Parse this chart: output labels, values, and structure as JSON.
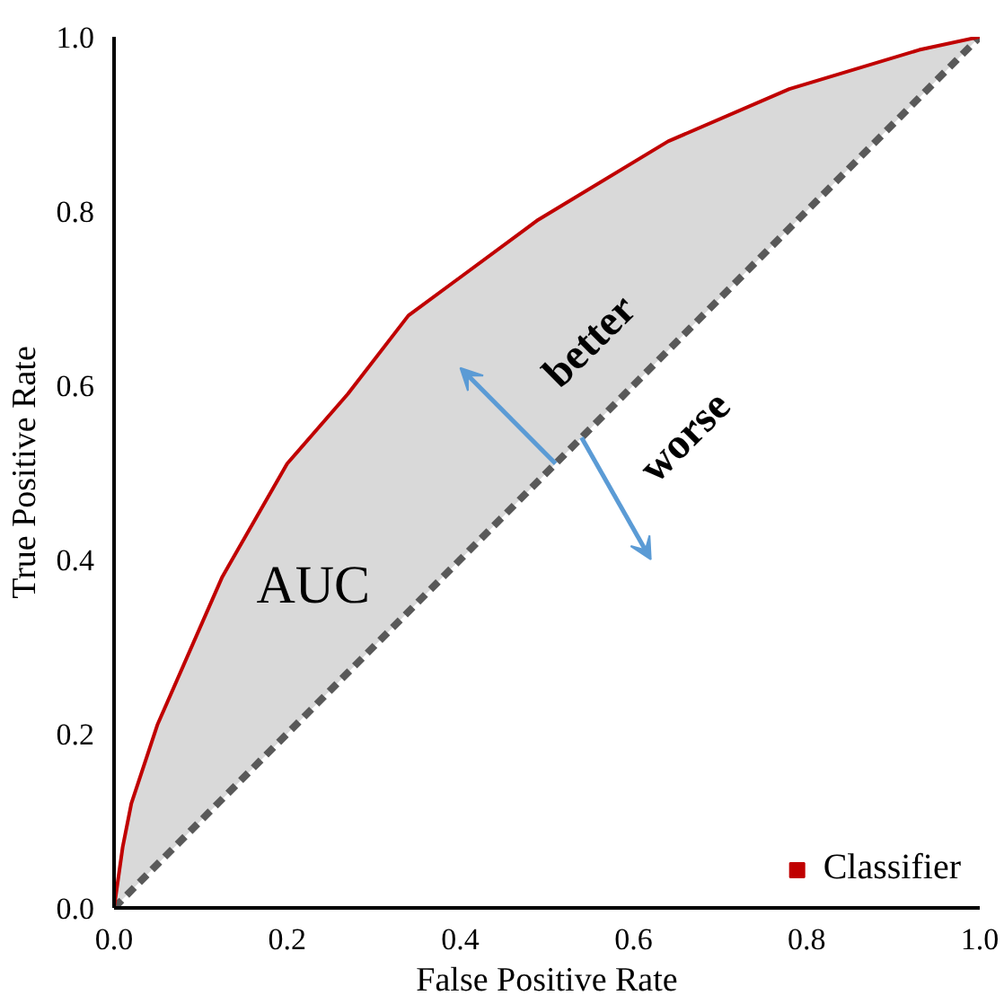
{
  "chart_data": {
    "type": "line",
    "xlabel": "False Positive Rate",
    "ylabel": "True Positive Rate",
    "xlim": [
      0,
      1
    ],
    "ylim": [
      0,
      1
    ],
    "xticks": [
      {
        "value": 0,
        "label": "0.0"
      },
      0.2,
      0.4,
      0.6,
      0.8,
      {
        "value": 1,
        "label": "1.0"
      }
    ],
    "yticks": [
      {
        "value": 0,
        "label": "0.0"
      },
      0.2,
      0.4,
      0.6,
      0.8,
      {
        "value": 1,
        "label": "1.0"
      }
    ],
    "grid": false,
    "legend": "bottom right",
    "marker": "none",
    "series": [
      {
        "name": "Classifier",
        "color": "#c00000",
        "x": [
          0,
          0.01,
          0.02,
          0.05,
          0.125,
          0.2,
          0.27,
          0.34,
          0.49,
          0.64,
          0.78,
          0.93,
          1
        ],
        "values": [
          0,
          0.07,
          0.12,
          0.21,
          0.38,
          0.51,
          0.59,
          0.68,
          0.79,
          0.88,
          0.94,
          0.985,
          1
        ],
        "lower": [
          0,
          0.01,
          0.02,
          0.05,
          0.125,
          0.2,
          0.27,
          0.34,
          0.49,
          0.64,
          0.78,
          0.93,
          1
        ],
        "upper": [
          0,
          0.07,
          0.12,
          0.21,
          0.38,
          0.51,
          0.59,
          0.68,
          0.79,
          0.88,
          0.94,
          0.985,
          1
        ]
      },
      {
        "color": "#595959",
        "line_style": "dashed",
        "x": [
          0,
          1
        ],
        "values": [
          0,
          1
        ]
      }
    ],
    "annotations": [
      "AUC",
      "better",
      "worse"
    ]
  }
}
